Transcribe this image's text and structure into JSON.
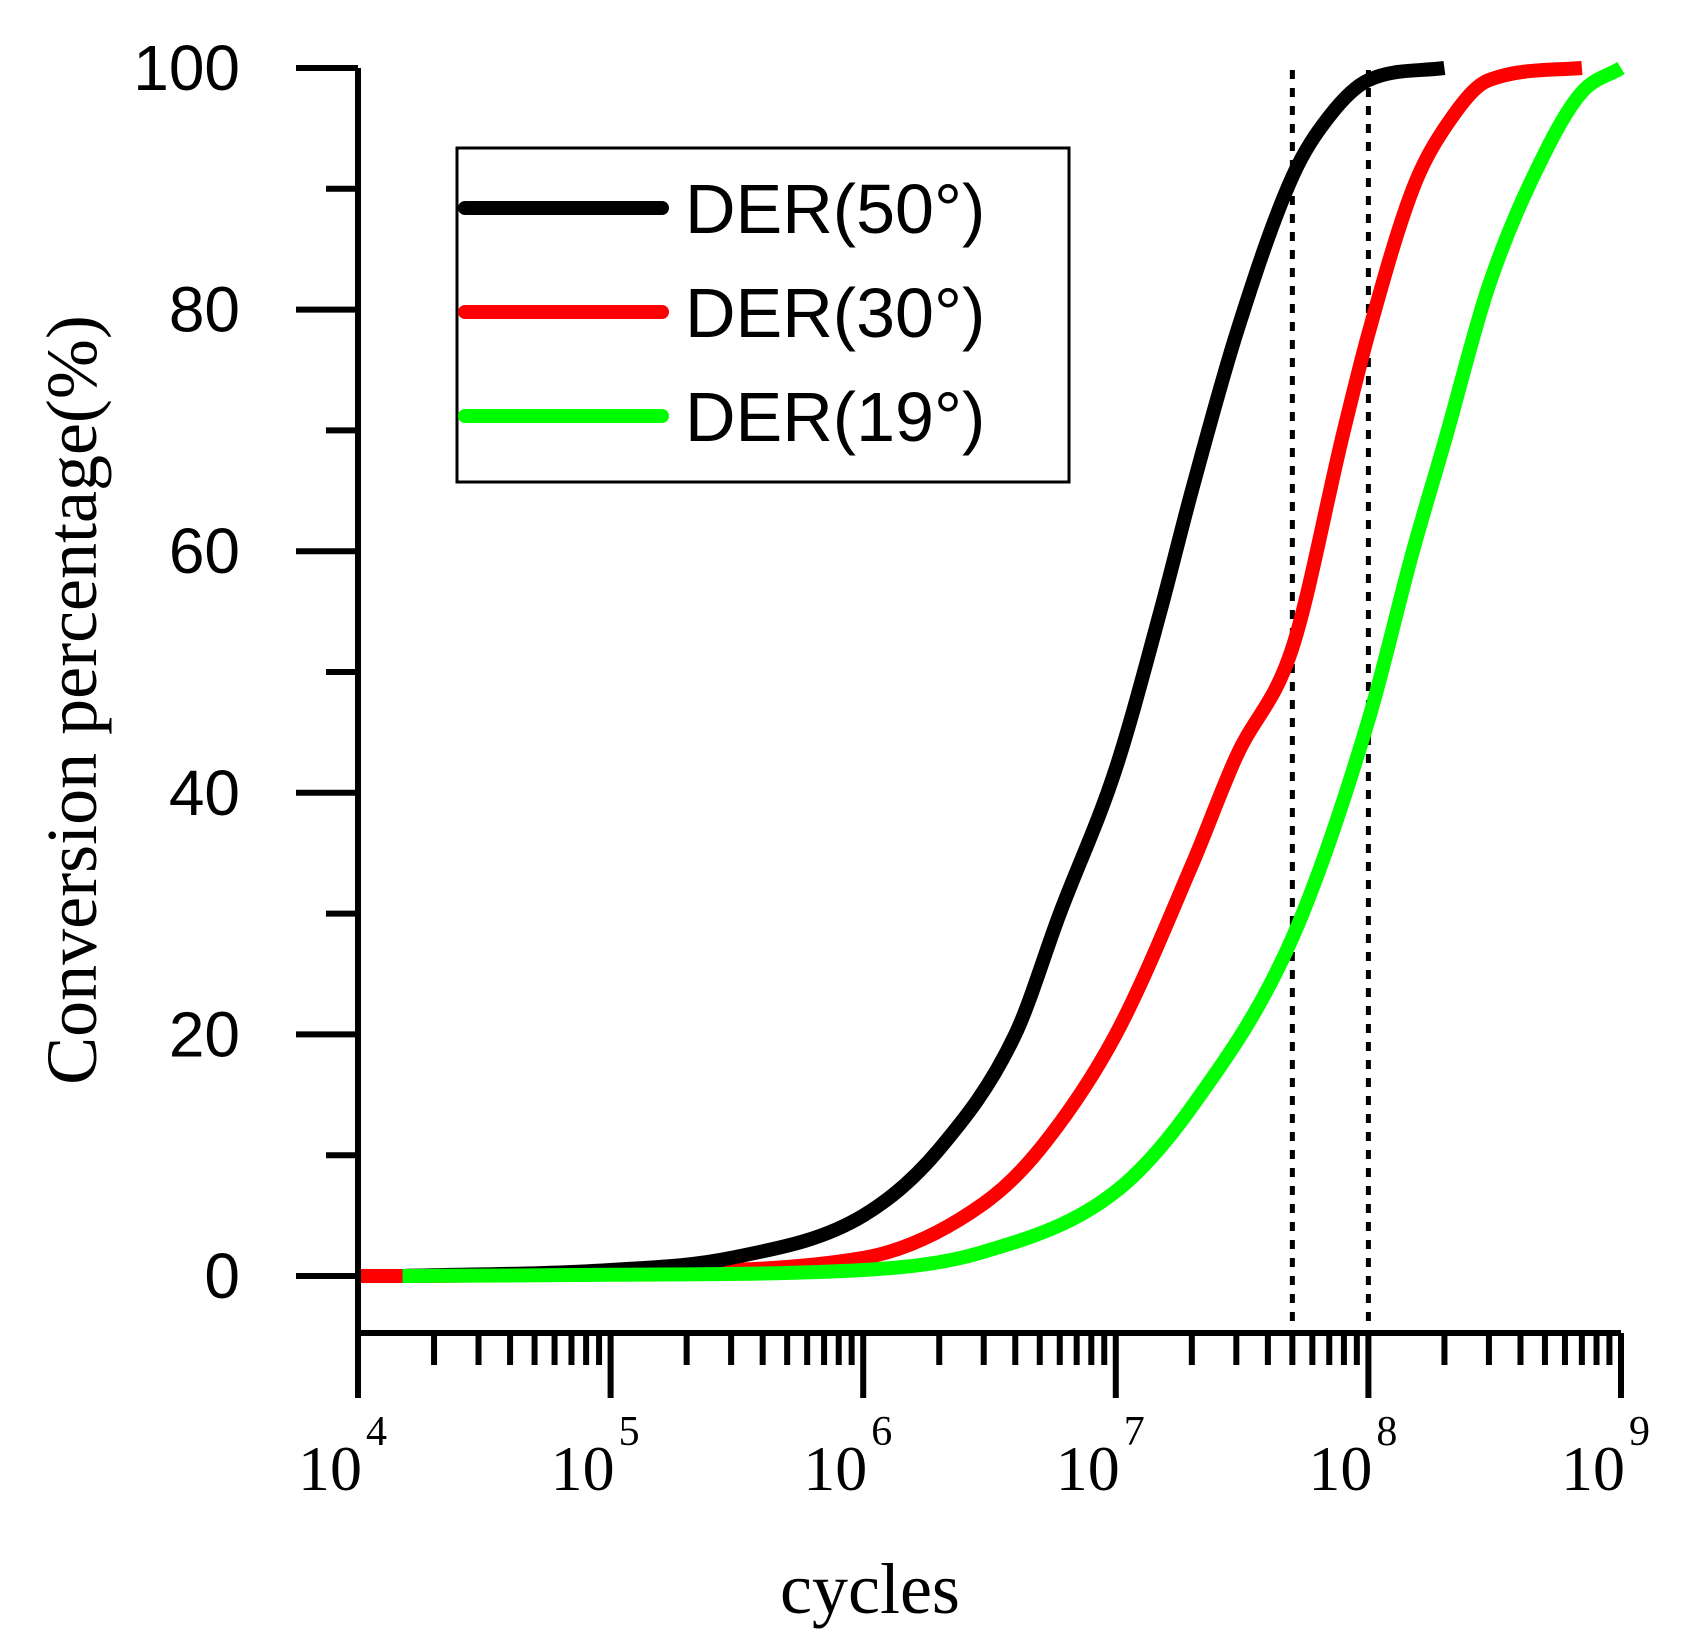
{
  "chart_data": {
    "type": "line",
    "xlabel": "cycles",
    "ylabel": "Conversion percentage(%)",
    "xscale": "log",
    "xlim": [
      10000,
      1000000000
    ],
    "ylim": [
      -5,
      100
    ],
    "y_ticks": [
      0,
      20,
      40,
      60,
      80,
      100
    ],
    "y_tick_labels": [
      "0",
      "20",
      "40",
      "60",
      "80",
      "100"
    ],
    "x_ticks": [
      10000,
      100000,
      1000000,
      10000000,
      100000000,
      1000000000
    ],
    "x_tick_labels": [
      {
        "base": "10",
        "exp": "4"
      },
      {
        "base": "10",
        "exp": "5"
      },
      {
        "base": "10",
        "exp": "6"
      },
      {
        "base": "10",
        "exp": "7"
      },
      {
        "base": "10",
        "exp": "8"
      },
      {
        "base": "10",
        "exp": "9"
      }
    ],
    "reference_lines_x": [
      50000000,
      100000000
    ],
    "legend_position": "top-left",
    "series": [
      {
        "name": "DER(50°)",
        "color": "#000000",
        "x": [
          15000,
          100000,
          300000,
          1000000,
          2000000,
          4000000,
          6000000,
          10000000,
          15000000,
          20000000,
          30000000,
          50000000,
          70000000,
          100000000,
          200000000
        ],
        "y": [
          0,
          0.5,
          1.5,
          5,
          10.5,
          20,
          30,
          42,
          55,
          65,
          78,
          91,
          96,
          99,
          100
        ]
      },
      {
        "name": "DER(30°)",
        "color": "#ff0000",
        "x": [
          10000,
          15000,
          100000,
          1000000,
          3000000,
          5000000,
          10000000,
          20000000,
          30000000,
          50000000,
          80000000,
          100000000,
          150000000,
          200000000,
          300000000,
          700000000
        ],
        "y": [
          0,
          0,
          0.3,
          1.5,
          6,
          10.5,
          20,
          34,
          43,
          52,
          70,
          78,
          90,
          95,
          99,
          100
        ]
      },
      {
        "name": "DER(19°)",
        "color": "#00ff00",
        "x": [
          15000,
          100000,
          1000000,
          3000000,
          10000000,
          20000000,
          50000000,
          100000000,
          150000000,
          200000000,
          300000000,
          500000000,
          700000000,
          1000000000
        ],
        "y": [
          0,
          0.1,
          0.5,
          2,
          7,
          14,
          28,
          46,
          60,
          69,
          82,
          93,
          98,
          100
        ]
      }
    ]
  }
}
